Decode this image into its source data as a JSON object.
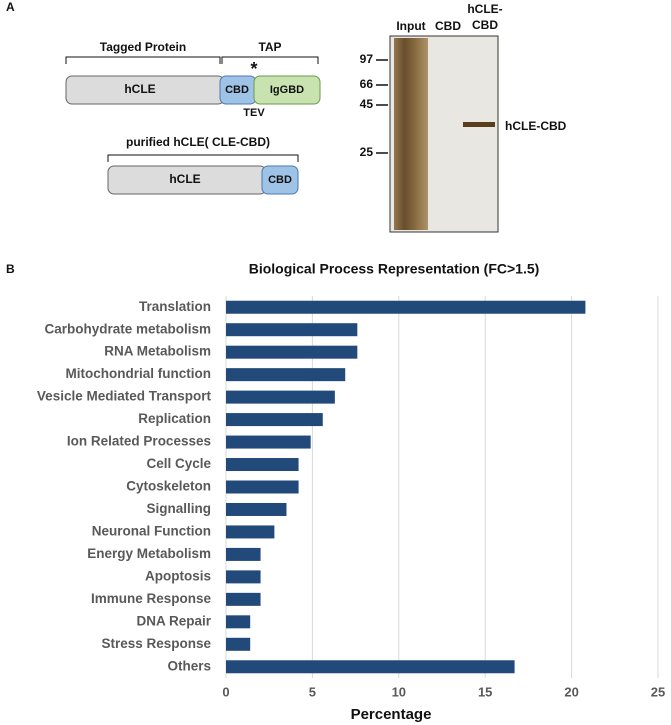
{
  "panel_a": {
    "label": "A",
    "construct": {
      "bracket_left": "Tagged Protein",
      "bracket_right": "TAP",
      "star": "*",
      "domain_1": "hCLE",
      "domain_2": "CBD",
      "domain_3": "IgGBD",
      "site": "TEV"
    },
    "purified": {
      "title": "purified hCLE( CLE-CBD)",
      "domain_1": "hCLE",
      "domain_2": "CBD"
    },
    "gel": {
      "lane_1": "Input",
      "lane_2": "CBD",
      "lane_3_lines": [
        "hCLE-",
        "CBD"
      ],
      "markers": [
        97,
        66,
        45,
        25
      ],
      "band_label": "hCLE-CBD"
    }
  },
  "panel_b_label": "B",
  "chart_data": {
    "type": "hbar",
    "title": "Biological Process Representation (FC>1.5)",
    "x_label": "Percentage",
    "categories": [
      "Translation",
      "Carbohydrate metabolism",
      "RNA Metabolism",
      "Mitochondrial function",
      "Vesicle Mediated Transport",
      "Replication",
      "Ion Related Processes",
      "Cell Cycle",
      "Cytoskeleton",
      "Signalling",
      "Neuronal Function",
      "Energy Metabolism",
      "Apoptosis",
      "Immune Response",
      "DNA Repair",
      "Stress Response",
      "Others"
    ],
    "values": [
      20.8,
      7.6,
      7.6,
      6.9,
      6.3,
      5.6,
      4.9,
      4.2,
      4.2,
      3.5,
      2.8,
      2.0,
      2.0,
      2.0,
      1.4,
      1.4,
      16.7
    ],
    "color": "#21497a",
    "xlim": [
      0,
      25
    ],
    "xticks": [
      0,
      5,
      10,
      15,
      20,
      25
    ],
    "grid": true
  }
}
